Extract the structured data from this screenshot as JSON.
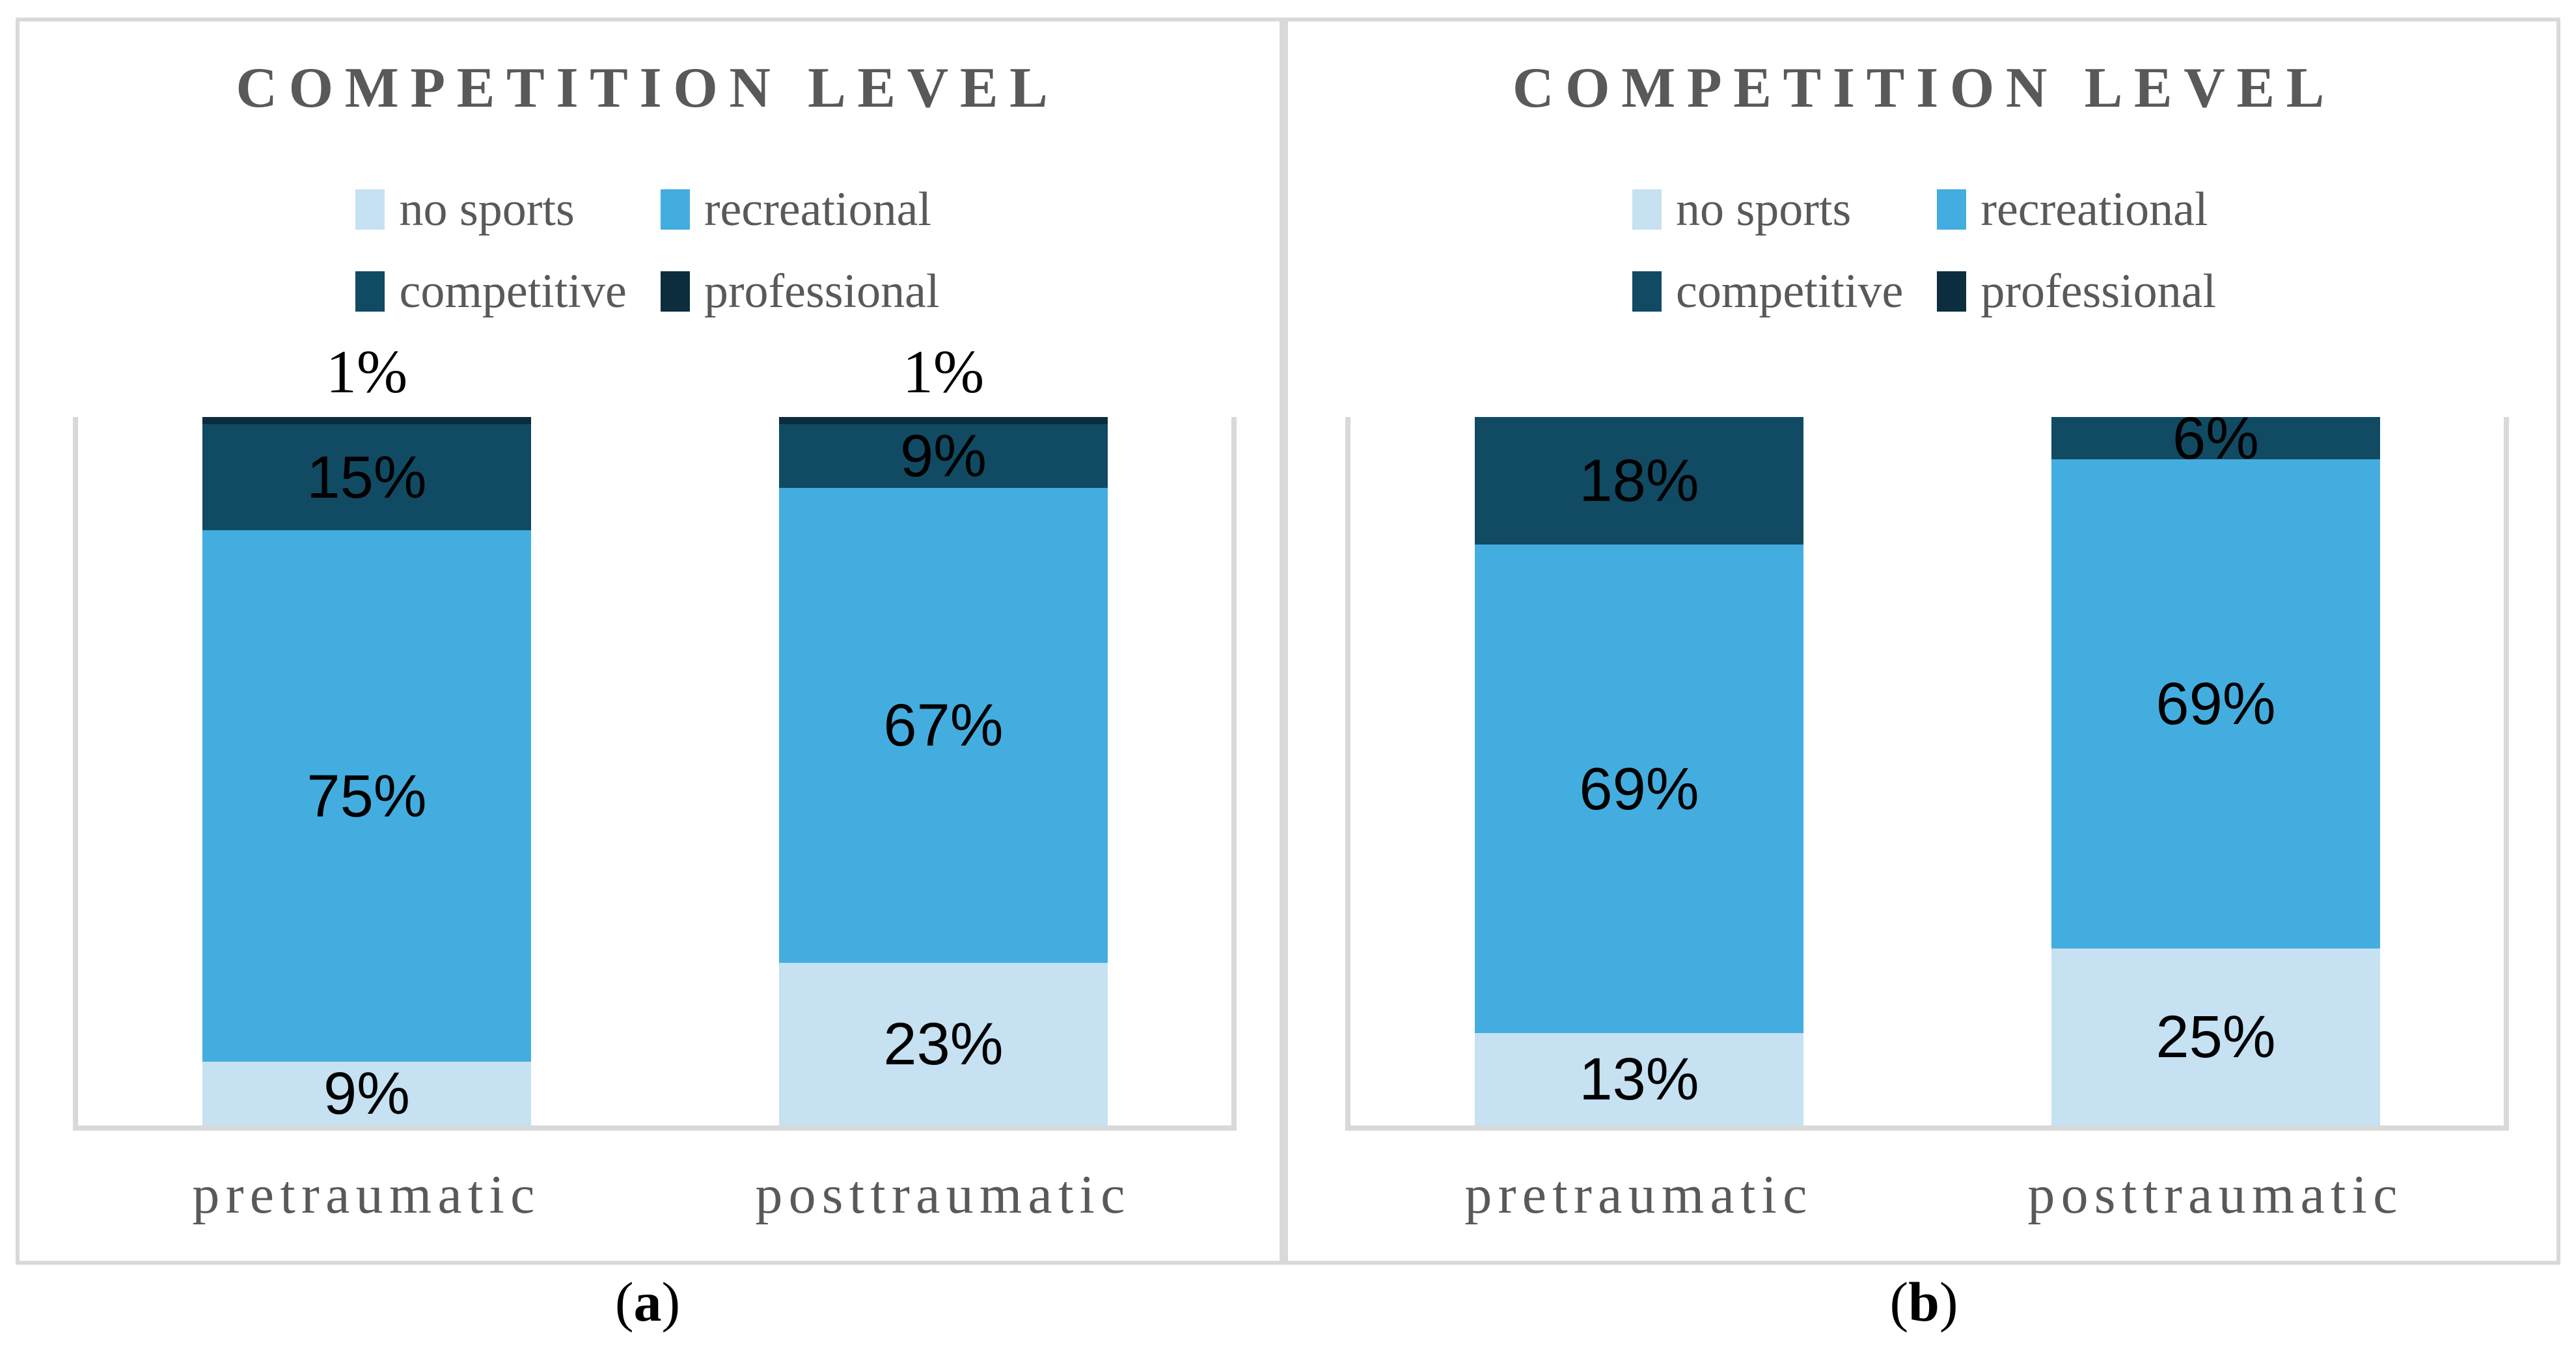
{
  "theme": {
    "text_gray": "#595959",
    "line_gray": "#d9d9d9",
    "label_black": "#000000"
  },
  "legend": {
    "items": [
      {
        "label": "no sports",
        "color": "#c5e1f2"
      },
      {
        "label": "recreational",
        "color": "#44addf"
      },
      {
        "label": "competitive",
        "color": "#114a63"
      },
      {
        "label": "professional",
        "color": "#0c2d3d"
      }
    ]
  },
  "captions": {
    "open": "(",
    "close": ")"
  },
  "panels": [
    {
      "caption_letter": "a"
    },
    {
      "caption_letter": "b"
    }
  ],
  "chart_data": [
    {
      "type": "bar",
      "stacked": true,
      "units": "%",
      "title": "COMPETITION LEVEL",
      "legend_position": "top",
      "grid": false,
      "ylim": [
        0,
        100
      ],
      "categories": [
        "pretraumatic",
        "posttraumatic"
      ],
      "series": [
        {
          "name": "no sports",
          "values": [
            9,
            23
          ]
        },
        {
          "name": "recreational",
          "values": [
            75,
            67
          ]
        },
        {
          "name": "competitive",
          "values": [
            15,
            9
          ]
        },
        {
          "name": "professional",
          "values": [
            1,
            1
          ]
        }
      ],
      "data_labels": [
        [
          "9%",
          "75%",
          "15%",
          "1%"
        ],
        [
          "23%",
          "67%",
          "9%",
          "1%"
        ]
      ]
    },
    {
      "type": "bar",
      "stacked": true,
      "units": "%",
      "title": "COMPETITION LEVEL",
      "legend_position": "top",
      "grid": false,
      "ylim": [
        0,
        100
      ],
      "categories": [
        "pretraumatic",
        "posttraumatic"
      ],
      "series": [
        {
          "name": "no sports",
          "values": [
            13,
            25
          ]
        },
        {
          "name": "recreational",
          "values": [
            69,
            69
          ]
        },
        {
          "name": "competitive",
          "values": [
            18,
            6
          ]
        },
        {
          "name": "professional",
          "values": [
            0,
            0
          ]
        }
      ],
      "data_labels": [
        [
          "13%",
          "69%",
          "18%"
        ],
        [
          "25%",
          "69%",
          "6%"
        ]
      ]
    }
  ]
}
